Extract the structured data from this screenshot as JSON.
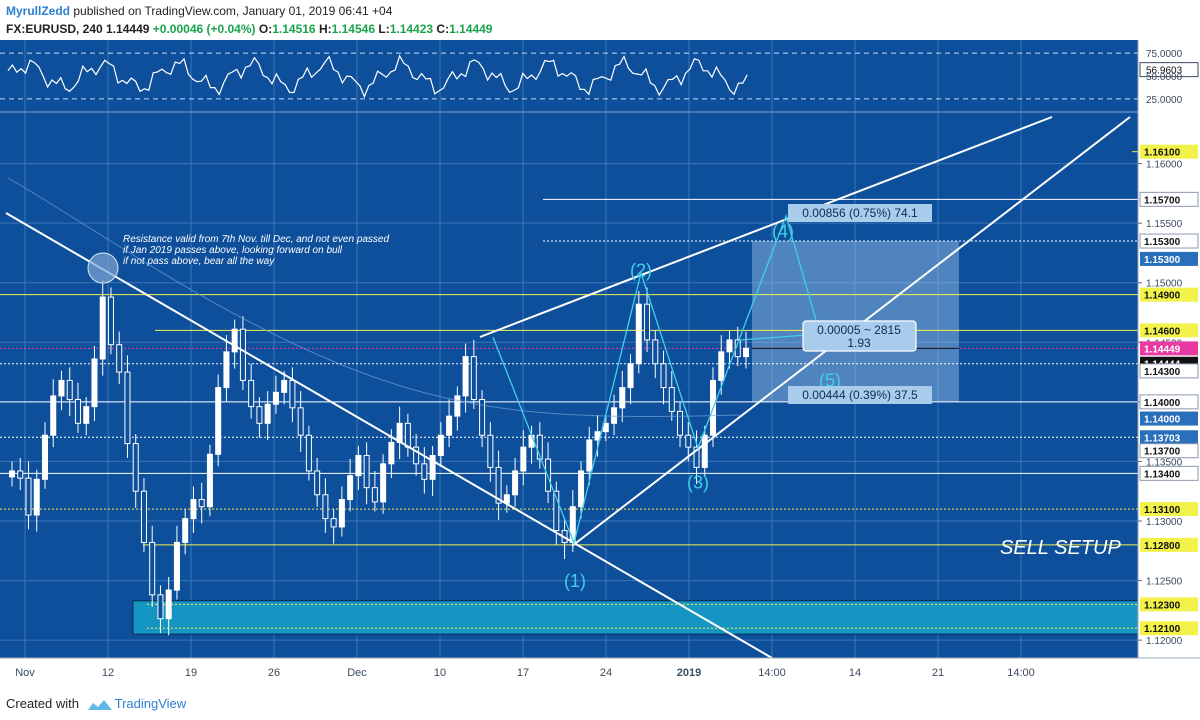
{
  "header": {
    "author": "MyrullZedd",
    "published": "published on TradingView.com, January 01, 2019 06:41 +04",
    "symbol": "FX:EURUSD, 240",
    "last": "1.14449",
    "change": "+0.00046 (+0.04%)",
    "o_label": "O:",
    "o": "1.14516",
    "h_label": "H:",
    "h": "1.14546",
    "l_label": "L:",
    "l": "1.14423",
    "c_label": "C:",
    "c": "1.14449"
  },
  "footer": {
    "created_with": "Created with",
    "brand": "TradingView"
  },
  "colors": {
    "background": "#0e4f9b",
    "grid": "#3b74b8",
    "candle": "#ffffff",
    "yellow": "#f2f24a",
    "cyan": "#3fd0e8",
    "highlight_box": "#1596c2",
    "magenta": "#e93aa3"
  },
  "chart_data": {
    "type": "line",
    "symbol": "FX:EURUSD",
    "timeframe": "240",
    "price_axis": {
      "range": [
        1.1185,
        1.1645
      ],
      "ticks": [
        "1.16000",
        "1.15500",
        "1.15000",
        "1.14500",
        "1.14000",
        "1.13500",
        "1.13000",
        "1.12500",
        "1.12000"
      ],
      "badges": [
        {
          "label": "1.16100",
          "value": 1.161,
          "style": "yellow"
        },
        {
          "label": "1.15700",
          "value": 1.157,
          "style": "white"
        },
        {
          "label": "1.15300",
          "value": 1.1535,
          "style": "white"
        },
        {
          "label": "1.15300",
          "value": 1.152,
          "style": "blue"
        },
        {
          "label": "1.14900",
          "value": 1.149,
          "style": "yellow"
        },
        {
          "label": "1.14600",
          "value": 1.146,
          "style": "yellow"
        },
        {
          "label": "1.14449",
          "value": 1.14449,
          "style": "magenta"
        },
        {
          "label": "1.14444",
          "value": 1.1432,
          "style": "black"
        },
        {
          "label": "1.14300",
          "value": 1.1426,
          "style": "white"
        },
        {
          "label": "1.14000",
          "value": 1.14,
          "style": "white"
        },
        {
          "label": "1.14000",
          "value": 1.1386,
          "style": "blue"
        },
        {
          "label": "1.13703",
          "value": 1.13703,
          "style": "blue"
        },
        {
          "label": "1.13700",
          "value": 1.1359,
          "style": "white"
        },
        {
          "label": "1.13400",
          "value": 1.134,
          "style": "white"
        },
        {
          "label": "1.13100",
          "value": 1.131,
          "style": "yellow"
        },
        {
          "label": "1.12800",
          "value": 1.128,
          "style": "yellow"
        },
        {
          "label": "1.12300",
          "value": 1.123,
          "style": "yellow"
        },
        {
          "label": "1.12100",
          "value": 1.121,
          "style": "yellow"
        }
      ]
    },
    "time_axis": [
      "Nov",
      "12",
      "19",
      "26",
      "Dec",
      "10",
      "17",
      "24",
      "2019",
      "14:00",
      "14",
      "21",
      "14:00"
    ],
    "rsi": {
      "ticks": [
        "75.0000",
        "56.9603",
        "50.0000",
        "25.0000"
      ],
      "current": 56.9603,
      "levels": [
        75,
        50,
        25
      ]
    },
    "candles_close": [
      1.1342,
      1.1336,
      1.1305,
      1.1335,
      1.1372,
      1.1405,
      1.1418,
      1.1402,
      1.1382,
      1.1396,
      1.1436,
      1.1488,
      1.1448,
      1.1425,
      1.1365,
      1.1325,
      1.1282,
      1.1238,
      1.1218,
      1.1242,
      1.1282,
      1.1302,
      1.1318,
      1.1312,
      1.1356,
      1.1412,
      1.1442,
      1.1461,
      1.1418,
      1.1396,
      1.1382,
      1.1398,
      1.1408,
      1.1418,
      1.1395,
      1.1372,
      1.1342,
      1.1322,
      1.1302,
      1.1295,
      1.1318,
      1.1338,
      1.1355,
      1.1328,
      1.1316,
      1.1348,
      1.1366,
      1.1382,
      1.1362,
      1.1348,
      1.1335,
      1.1355,
      1.1372,
      1.1388,
      1.1405,
      1.1438,
      1.1402,
      1.1372,
      1.1345,
      1.1315,
      1.1322,
      1.1342,
      1.1362,
      1.1372,
      1.1352,
      1.1325,
      1.1292,
      1.1282,
      1.1312,
      1.1342,
      1.1368,
      1.1375,
      1.1382,
      1.1395,
      1.1412,
      1.1432,
      1.1482,
      1.1452,
      1.1432,
      1.1412,
      1.1392,
      1.1372,
      1.1362,
      1.1345,
      1.1372,
      1.1418,
      1.1442,
      1.1452,
      1.1438,
      1.1445
    ],
    "horizontal_levels": [
      {
        "value": 1.161,
        "style": "yellow"
      },
      {
        "value": 1.157,
        "style": "white"
      },
      {
        "value": 1.1535,
        "style": "white-dotted"
      },
      {
        "value": 1.149,
        "style": "yellow"
      },
      {
        "value": 1.146,
        "style": "yellow"
      },
      {
        "value": 1.14449,
        "style": "magenta-dotted"
      },
      {
        "value": 1.1432,
        "style": "white-dotted"
      },
      {
        "value": 1.14,
        "style": "white"
      },
      {
        "value": 1.13703,
        "style": "white-dotted"
      },
      {
        "value": 1.134,
        "style": "white"
      },
      {
        "value": 1.131,
        "style": "yellow-dotted"
      },
      {
        "value": 1.128,
        "style": "yellow"
      },
      {
        "value": 1.123,
        "style": "yellow-dotted"
      },
      {
        "value": 1.121,
        "style": "yellow-dotted"
      }
    ],
    "wave_labels": [
      {
        "label": "(1)",
        "price": 1.1252
      },
      {
        "label": "(2)",
        "price": 1.1502
      },
      {
        "label": "(3)",
        "price": 1.1335
      },
      {
        "label": "(4)",
        "price": 1.1538
      },
      {
        "label": "(5)",
        "price": 1.1418
      }
    ],
    "measure_labels": {
      "upper": "0.00856 (0.75%) 74.1",
      "middle_1": "0.00005 ~ 2815",
      "middle_2": "1.93",
      "lower": "0.00444 (0.39%) 37.5"
    },
    "annotation": [
      "Resistance valid from 7th Nov. till Dec, and not even passed",
      "if Jan 2019 passes above, looking forward on bull",
      "if not pass above, bear all the way"
    ],
    "setup_label": "SELL SETUP",
    "grid": true
  }
}
